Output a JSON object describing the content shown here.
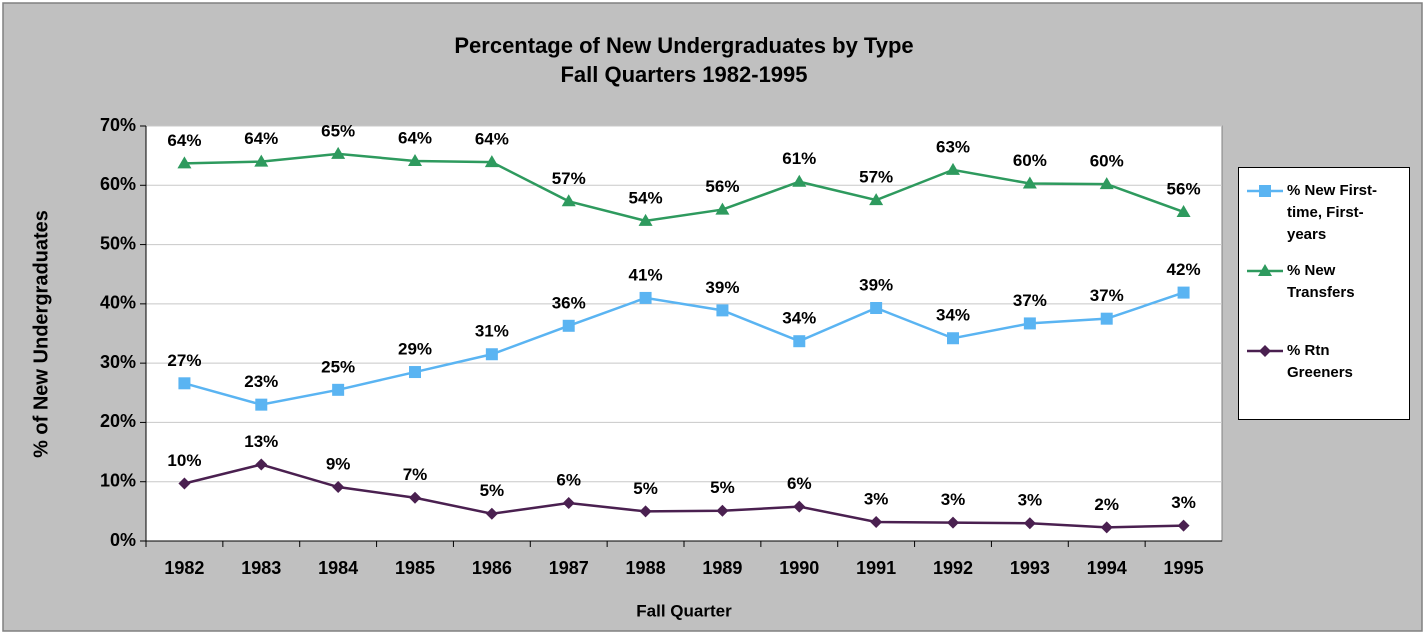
{
  "chart_data": {
    "type": "line",
    "title": "Percentage of New Undergraduates by Type",
    "subtitle": "Fall Quarters 1982-1995",
    "x_label": "Fall Quarter",
    "y_label": "% of New Undergraduates",
    "categories": [
      "1982",
      "1983",
      "1984",
      "1985",
      "1986",
      "1987",
      "1988",
      "1989",
      "1990",
      "1991",
      "1992",
      "1993",
      "1994",
      "1995"
    ],
    "series": [
      {
        "name": "% New First-time, First-years",
        "color": "#5ab4f2",
        "marker": "square",
        "values": [
          26.6,
          23.0,
          25.5,
          28.5,
          31.5,
          36.3,
          41.0,
          38.9,
          33.7,
          39.3,
          34.2,
          36.7,
          37.5,
          41.9
        ],
        "value_labels": [
          "27%",
          "23%",
          "25%",
          "29%",
          "31%",
          "36%",
          "41%",
          "39%",
          "34%",
          "39%",
          "34%",
          "37%",
          "37%",
          "42%"
        ]
      },
      {
        "name": "% New Transfers",
        "color": "#2e9a5e",
        "marker": "triangle",
        "values": [
          63.7,
          64.0,
          65.3,
          64.1,
          63.9,
          57.3,
          54.0,
          55.9,
          60.6,
          57.5,
          62.6,
          60.3,
          60.2,
          55.5
        ],
        "value_labels": [
          "64%",
          "64%",
          "65%",
          "64%",
          "64%",
          "57%",
          "54%",
          "56%",
          "61%",
          "57%",
          "63%",
          "60%",
          "60%",
          "56%"
        ]
      },
      {
        "name": "% Rtn Greeners",
        "color": "#4a2050",
        "marker": "diamond",
        "values": [
          9.7,
          12.9,
          9.1,
          7.3,
          4.6,
          6.4,
          5.0,
          5.1,
          5.8,
          3.2,
          3.1,
          3.0,
          2.3,
          2.6
        ],
        "value_labels": [
          "10%",
          "13%",
          "9%",
          "7%",
          "5%",
          "6%",
          "5%",
          "5%",
          "6%",
          "3%",
          "3%",
          "3%",
          "2%",
          "3%"
        ]
      }
    ],
    "ylim": [
      0,
      70
    ],
    "yticks": [
      {
        "value": 0,
        "label": "0%"
      },
      {
        "value": 10,
        "label": "10%"
      },
      {
        "value": 20,
        "label": "20%"
      },
      {
        "value": 30,
        "label": "30%"
      },
      {
        "value": 40,
        "label": "40%"
      },
      {
        "value": 50,
        "label": "50%"
      },
      {
        "value": 60,
        "label": "60%"
      },
      {
        "value": 70,
        "label": "70%"
      }
    ],
    "grid": true,
    "legend": "right"
  }
}
